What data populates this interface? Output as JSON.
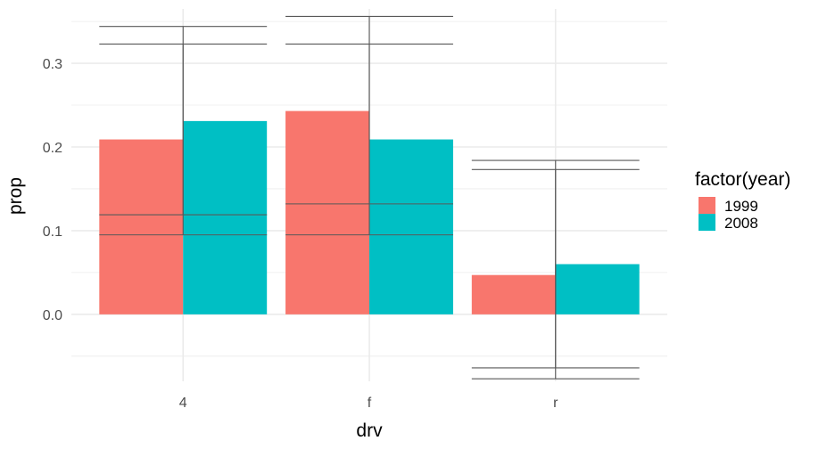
{
  "chart_data": {
    "type": "bar",
    "categories": [
      "4",
      "f",
      "r"
    ],
    "xlabel": "drv",
    "ylabel": "prop",
    "ylim": [
      -0.08,
      0.365
    ],
    "yticks": [
      0.0,
      0.1,
      0.2,
      0.3
    ],
    "ytick_labels": [
      "0.0",
      "0.1",
      "0.2",
      "0.3"
    ],
    "grid": true,
    "legend": {
      "title": "factor(year)",
      "placement": "right",
      "entries": [
        "1999",
        "2008"
      ]
    },
    "series": [
      {
        "name": "1999",
        "color": "#F8766D",
        "values": [
          0.209,
          0.243,
          0.047
        ]
      },
      {
        "name": "2008",
        "color": "#00BFC4",
        "values": [
          0.231,
          0.209,
          0.06
        ]
      }
    ],
    "errorbars": [
      {
        "category": "4",
        "ymin": 0.095,
        "ymax": 0.344,
        "width": 0.9
      },
      {
        "category": "4",
        "ymin": 0.119,
        "ymax": 0.323,
        "width": 0.9
      },
      {
        "category": "f",
        "ymin": 0.095,
        "ymax": 0.356,
        "width": 0.9
      },
      {
        "category": "f",
        "ymin": 0.132,
        "ymax": 0.323,
        "width": 0.9
      },
      {
        "category": "r",
        "ymin": -0.077,
        "ymax": 0.184,
        "width": 0.9
      },
      {
        "category": "r",
        "ymin": -0.064,
        "ymax": 0.173,
        "width": 0.9
      }
    ],
    "colors": {
      "panel_background": "#FFFFFF",
      "grid": "#EBEBEB",
      "errorbar": "#595959"
    }
  }
}
